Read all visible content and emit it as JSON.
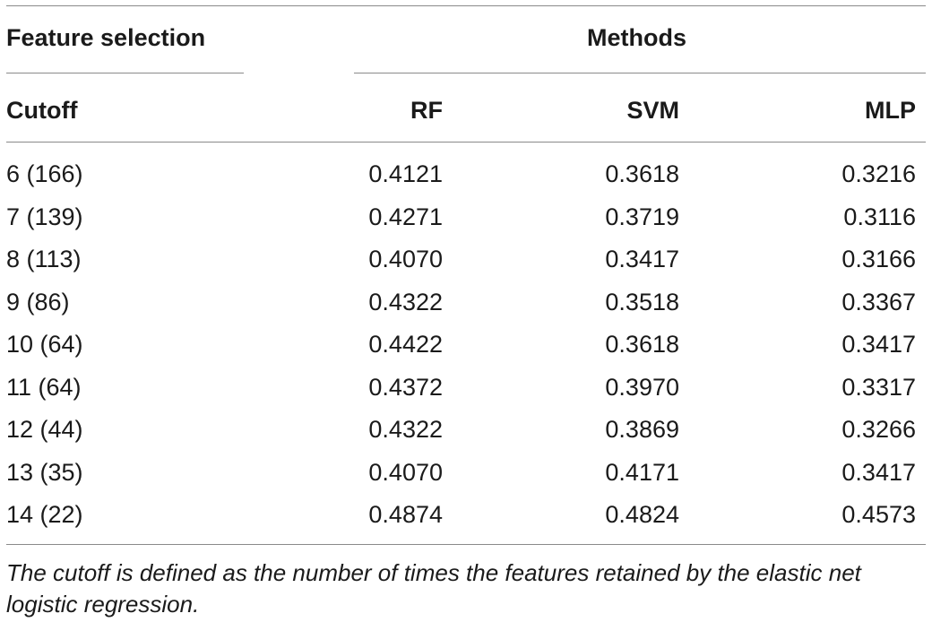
{
  "table": {
    "group_header_left": "Feature selection",
    "group_header_right": "Methods",
    "columns": [
      "Cutoff",
      "RF",
      "SVM",
      "MLP"
    ],
    "rows": [
      [
        "6 (166)",
        "0.4121",
        "0.3618",
        "0.3216"
      ],
      [
        "7 (139)",
        "0.4271",
        "0.3719",
        "0.3116"
      ],
      [
        "8 (113)",
        "0.4070",
        "0.3417",
        "0.3166"
      ],
      [
        "9 (86)",
        "0.4322",
        "0.3518",
        "0.3367"
      ],
      [
        "10 (64)",
        "0.4422",
        "0.3618",
        "0.3417"
      ],
      [
        "11 (64)",
        "0.4372",
        "0.3970",
        "0.3317"
      ],
      [
        "12 (44)",
        "0.4322",
        "0.3869",
        "0.3266"
      ],
      [
        "13 (35)",
        "0.4070",
        "0.4171",
        "0.3417"
      ],
      [
        "14 (22)",
        "0.4874",
        "0.4824",
        "0.4573"
      ]
    ],
    "footnote": "The cutoff is defined as the number of times the features retained by the elastic net logistic regression."
  }
}
